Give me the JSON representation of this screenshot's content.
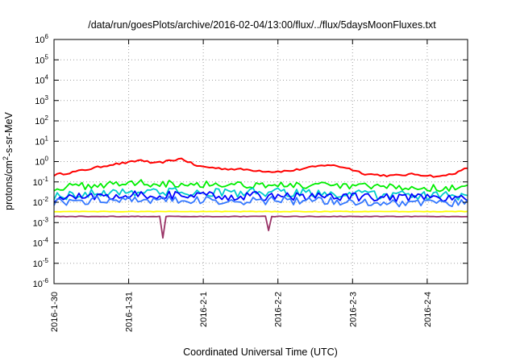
{
  "chart_data": {
    "type": "line",
    "title": "/data/run/goesPlots/archive/2016-02-04/13:00/flux/../flux/5daysMoonFluxes.txt",
    "xlabel": "Coordinated Universal Time (UTC)",
    "ylabel_parts": {
      "base": "protons/cm",
      "sup": "2",
      "rest": "-s-sr-MeV"
    },
    "y_scale": "log",
    "ylim": [
      1e-06,
      1000000.0
    ],
    "y_ticks": [
      {
        "base": "10",
        "exp": "-6",
        "value": 1e-06
      },
      {
        "base": "10",
        "exp": "-5",
        "value": 1e-05
      },
      {
        "base": "10",
        "exp": "-4",
        "value": 0.0001
      },
      {
        "base": "10",
        "exp": "-3",
        "value": 0.001
      },
      {
        "base": "10",
        "exp": "-2",
        "value": 0.01
      },
      {
        "base": "10",
        "exp": "-1",
        "value": 0.1
      },
      {
        "base": "10",
        "exp": "0",
        "value": 1
      },
      {
        "base": "10",
        "exp": "1",
        "value": 10
      },
      {
        "base": "10",
        "exp": "2",
        "value": 100
      },
      {
        "base": "10",
        "exp": "3",
        "value": 1000
      },
      {
        "base": "10",
        "exp": "4",
        "value": 10000
      },
      {
        "base": "10",
        "exp": "5",
        "value": 100000
      },
      {
        "base": "10",
        "exp": "6",
        "value": 1000000
      }
    ],
    "xlim": [
      "2016-01-30 00:00",
      "2016-02-04 13:00"
    ],
    "x_ticks": [
      {
        "label": "2016-1-30",
        "value": "2016-01-30"
      },
      {
        "label": "2016-1-31",
        "value": "2016-01-31"
      },
      {
        "label": "2016-2-1",
        "value": "2016-02-01"
      },
      {
        "label": "2016-2-2",
        "value": "2016-02-02"
      },
      {
        "label": "2016-2-3",
        "value": "2016-02-03"
      },
      {
        "label": "2016-2-4",
        "value": "2016-02-04"
      }
    ],
    "grid": true,
    "legend": "none",
    "series": [
      {
        "color": "#ff0000",
        "anchors": [
          [
            "2016-01-30 00:00",
            0.22
          ],
          [
            "2016-01-30 06:00",
            0.3
          ],
          [
            "2016-01-30 12:00",
            0.45
          ],
          [
            "2016-01-30 18:00",
            0.7
          ],
          [
            "2016-01-31 00:00",
            0.9
          ],
          [
            "2016-01-31 04:00",
            1.2
          ],
          [
            "2016-01-31 08:00",
            0.8
          ],
          [
            "2016-01-31 12:00",
            1.0
          ],
          [
            "2016-01-31 17:00",
            1.4
          ],
          [
            "2016-01-31 22:00",
            0.6
          ],
          [
            "2016-02-01 06:00",
            0.45
          ],
          [
            "2016-02-01 14:00",
            0.4
          ],
          [
            "2016-02-01 22:00",
            0.32
          ],
          [
            "2016-02-02 04:00",
            0.35
          ],
          [
            "2016-02-02 10:00",
            0.5
          ],
          [
            "2016-02-02 16:00",
            0.7
          ],
          [
            "2016-02-02 22:00",
            0.5
          ],
          [
            "2016-02-03 04:00",
            0.25
          ],
          [
            "2016-02-03 12:00",
            0.2
          ],
          [
            "2016-02-03 20:00",
            0.24
          ],
          [
            "2016-02-04 04:00",
            0.18
          ],
          [
            "2016-02-04 10:00",
            0.3
          ],
          [
            "2016-02-04 13:00",
            0.5
          ]
        ]
      },
      {
        "color": "#00ee00",
        "anchors": [
          [
            "2016-01-30 00:00",
            0.05
          ],
          [
            "2016-01-31 00:00",
            0.09
          ],
          [
            "2016-02-01 00:00",
            0.08
          ],
          [
            "2016-02-02 00:00",
            0.07
          ],
          [
            "2016-02-03 00:00",
            0.06
          ],
          [
            "2016-02-04 00:00",
            0.05
          ],
          [
            "2016-02-04 13:00",
            0.05
          ]
        ]
      },
      {
        "color": "#00cccc",
        "anchors": [
          [
            "2016-01-30 00:00",
            0.02
          ],
          [
            "2016-01-31 00:00",
            0.035
          ],
          [
            "2016-02-01 00:00",
            0.03
          ],
          [
            "2016-02-02 00:00",
            0.03
          ],
          [
            "2016-02-03 00:00",
            0.025
          ],
          [
            "2016-02-04 00:00",
            0.02
          ],
          [
            "2016-02-04 13:00",
            0.02
          ]
        ]
      },
      {
        "color": "#0000ff",
        "anchors": [
          [
            "2016-01-30 00:00",
            0.015
          ],
          [
            "2016-01-31 00:00",
            0.025
          ],
          [
            "2016-02-01 00:00",
            0.02
          ],
          [
            "2016-02-02 00:00",
            0.02
          ],
          [
            "2016-02-03 00:00",
            0.018
          ],
          [
            "2016-02-04 00:00",
            0.015
          ],
          [
            "2016-02-04 13:00",
            0.015
          ]
        ]
      },
      {
        "color": "#3377ff",
        "anchors": [
          [
            "2016-01-30 00:00",
            0.01
          ],
          [
            "2016-01-31 00:00",
            0.015
          ],
          [
            "2016-02-01 00:00",
            0.012
          ],
          [
            "2016-02-02 00:00",
            0.012
          ],
          [
            "2016-02-03 00:00",
            0.011
          ],
          [
            "2016-02-04 00:00",
            0.009
          ],
          [
            "2016-02-04 13:00",
            0.009
          ]
        ]
      },
      {
        "color": "#ffff00",
        "anchors": [
          [
            "2016-01-30 00:00",
            0.0035
          ],
          [
            "2016-02-04 13:00",
            0.0035
          ]
        ]
      },
      {
        "color": "#993366",
        "anchors": [
          [
            "2016-01-30 00:00",
            0.002
          ],
          [
            "2016-01-31 10:00",
            0.002
          ],
          [
            "2016-01-31 11:00",
            0.00018
          ],
          [
            "2016-01-31 12:00",
            0.002
          ],
          [
            "2016-02-01 20:00",
            0.002
          ],
          [
            "2016-02-01 21:00",
            0.0004
          ],
          [
            "2016-02-01 22:00",
            0.002
          ],
          [
            "2016-02-04 13:00",
            0.002
          ]
        ]
      }
    ]
  }
}
